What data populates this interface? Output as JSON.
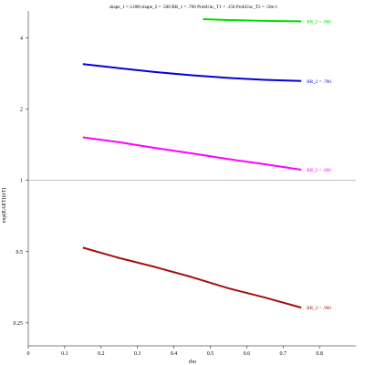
{
  "chart_data": {
    "type": "line",
    "title": "shape_1 = 2.000  shape_2 = .500  RR_1 = .700  ProbUnc_T1 = .150  ProbUnc_T2 = .50e-1",
    "xlabel": "rho",
    "ylabel": "exp(EAET(t|rT)",
    "xlim": [
      0,
      0.9
    ],
    "ylim": [
      0.2,
      5.2
    ],
    "y_scale": "log",
    "x_ticks": [
      "0",
      "0.1",
      "0.2",
      "0.3",
      "0.4",
      "0.5",
      "0.6",
      "0.7",
      "0.8"
    ],
    "y_ticks": [
      {
        "value": 0.25,
        "label": "0.25"
      },
      {
        "value": 0.5,
        "label": "0.5"
      },
      {
        "value": 1,
        "label": "1"
      },
      {
        "value": 2,
        "label": "2"
      },
      {
        "value": 4,
        "label": "4"
      }
    ],
    "reference_line": {
      "y": 1
    },
    "grid": false,
    "series": [
      {
        "name": "RR_2 = .800",
        "color": "#00dd00",
        "x": [
          0.48,
          0.55,
          0.62,
          0.69,
          0.75
        ],
        "y": [
          4.8,
          4.76,
          4.73,
          4.71,
          4.7
        ]
      },
      {
        "name": "RR_2 = .700",
        "color": "#0000dd",
        "x": [
          0.15,
          0.25,
          0.35,
          0.45,
          0.55,
          0.65,
          0.75
        ],
        "y": [
          3.1,
          2.98,
          2.87,
          2.78,
          2.71,
          2.66,
          2.63
        ]
      },
      {
        "name": "RR_2 = .600",
        "color": "#ff00ff",
        "x": [
          0.15,
          0.25,
          0.35,
          0.45,
          0.55,
          0.65,
          0.75
        ],
        "y": [
          1.52,
          1.45,
          1.37,
          1.3,
          1.23,
          1.17,
          1.11
        ]
      },
      {
        "name": "RR_2 = .900",
        "color": "#a01010",
        "x": [
          0.15,
          0.25,
          0.35,
          0.45,
          0.55,
          0.65,
          0.75
        ],
        "y": [
          0.52,
          0.47,
          0.43,
          0.39,
          0.35,
          0.32,
          0.29
        ]
      }
    ]
  }
}
